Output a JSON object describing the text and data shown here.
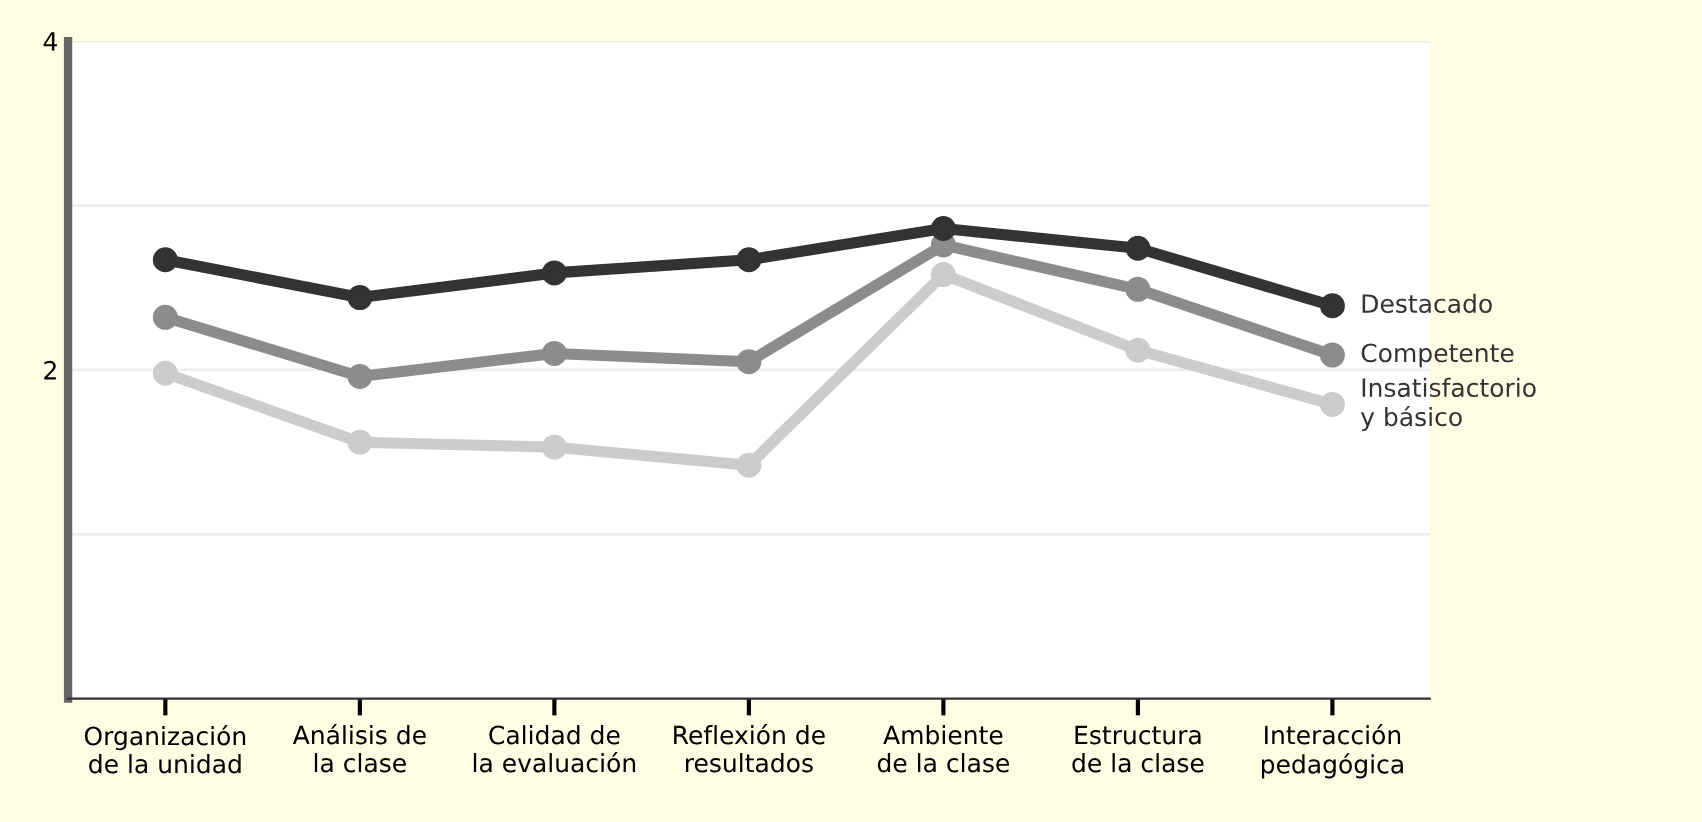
{
  "chart_data": {
    "type": "line",
    "categories": [
      "Organización\nde la unidad",
      "Análisis de\nla clase",
      "Calidad de\nla evaluación",
      "Reflexión de\nresultados",
      "Ambiente\nde la clase",
      "Estructura\nde la clase",
      "Interacción\npedagógica"
    ],
    "series": [
      {
        "name": "Destacado",
        "color": "#333333",
        "values": [
          2.67,
          2.44,
          2.59,
          2.67,
          2.86,
          2.74,
          2.39
        ]
      },
      {
        "name": "Competente",
        "color": "#8c8c8c",
        "values": [
          2.32,
          1.96,
          2.1,
          2.05,
          2.76,
          2.49,
          2.09
        ]
      },
      {
        "name": "Insatisfactorio\ny básico",
        "color": "#cccccc",
        "values": [
          1.98,
          1.56,
          1.53,
          1.42,
          2.58,
          2.12,
          1.79
        ]
      }
    ],
    "ylim": [
      0,
      4
    ],
    "yticks": [
      {
        "value": 1,
        "label": null
      },
      2,
      {
        "value": 3,
        "label": null
      },
      4
    ],
    "grid": "y",
    "marker": "circle",
    "line_style": "solid",
    "legend": false
  }
}
